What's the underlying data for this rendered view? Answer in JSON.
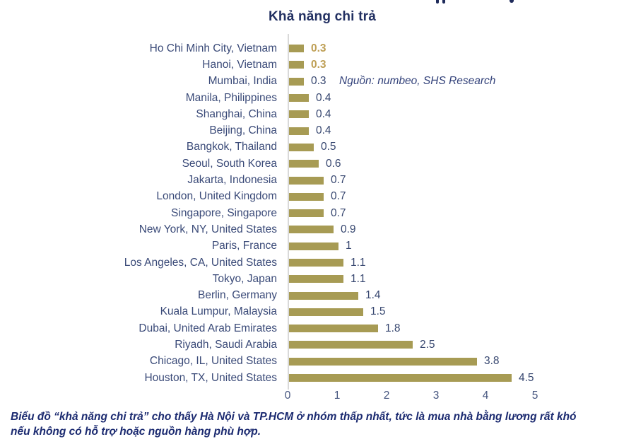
{
  "chart": {
    "title": "Khả năng chi trả",
    "source": "Nguồn: numbeo, SHS Research"
  },
  "chart_data": {
    "type": "bar",
    "orientation": "horizontal",
    "title": "Khả năng chi trả",
    "xlabel": "",
    "ylabel": "",
    "xlim": [
      0,
      5
    ],
    "x_ticks": [
      "0",
      "1",
      "2",
      "3",
      "4",
      "5"
    ],
    "grid": false,
    "legend": "none",
    "bar_color": "#a79b54",
    "highlight_value_color": "#be9f55",
    "label_color": "#3a4a78",
    "source": "Nguồn: numbeo, SHS Research",
    "rows": [
      {
        "label": "Ho Chi Minh City, Vietnam",
        "value": 0.3,
        "display": "0.3",
        "highlight": true
      },
      {
        "label": "Hanoi, Vietnam",
        "value": 0.3,
        "display": "0.3",
        "highlight": true
      },
      {
        "label": "Mumbai, India",
        "value": 0.3,
        "display": "0.3",
        "highlight": false
      },
      {
        "label": "Manila, Philippines",
        "value": 0.4,
        "display": "0.4",
        "highlight": false
      },
      {
        "label": "Shanghai, China",
        "value": 0.4,
        "display": "0.4",
        "highlight": false
      },
      {
        "label": "Beijing, China",
        "value": 0.4,
        "display": "0.4",
        "highlight": false
      },
      {
        "label": "Bangkok, Thailand",
        "value": 0.5,
        "display": "0.5",
        "highlight": false
      },
      {
        "label": "Seoul, South Korea",
        "value": 0.6,
        "display": "0.6",
        "highlight": false
      },
      {
        "label": "Jakarta, Indonesia",
        "value": 0.7,
        "display": "0.7",
        "highlight": false
      },
      {
        "label": "London, United Kingdom",
        "value": 0.7,
        "display": "0.7",
        "highlight": false
      },
      {
        "label": "Singapore, Singapore",
        "value": 0.7,
        "display": "0.7",
        "highlight": false
      },
      {
        "label": "New York, NY, United States",
        "value": 0.9,
        "display": "0.9",
        "highlight": false
      },
      {
        "label": "Paris, France",
        "value": 1.0,
        "display": "1",
        "highlight": false
      },
      {
        "label": "Los Angeles, CA, United States",
        "value": 1.1,
        "display": "1.1",
        "highlight": false
      },
      {
        "label": "Tokyo, Japan",
        "value": 1.1,
        "display": "1.1",
        "highlight": false
      },
      {
        "label": "Berlin, Germany",
        "value": 1.4,
        "display": "1.4",
        "highlight": false
      },
      {
        "label": "Kuala Lumpur, Malaysia",
        "value": 1.5,
        "display": "1.5",
        "highlight": false
      },
      {
        "label": "Dubai, United Arab Emirates",
        "value": 1.8,
        "display": "1.8",
        "highlight": false
      },
      {
        "label": "Riyadh, Saudi Arabia",
        "value": 2.5,
        "display": "2.5",
        "highlight": false
      },
      {
        "label": "Chicago, IL, United States",
        "value": 3.8,
        "display": "3.8",
        "highlight": false
      },
      {
        "label": "Houston, TX, United States",
        "value": 4.5,
        "display": "4.5",
        "highlight": false
      }
    ]
  },
  "caption": {
    "line1": "Biểu đồ “khả năng chi trả” cho thấy Hà Nội và TP.HCM ở nhóm thấp nhất, tức là mua nhà bằng lương rất khó",
    "line2": "nếu không có hỗ trợ hoặc nguồn hàng phù hợp."
  }
}
